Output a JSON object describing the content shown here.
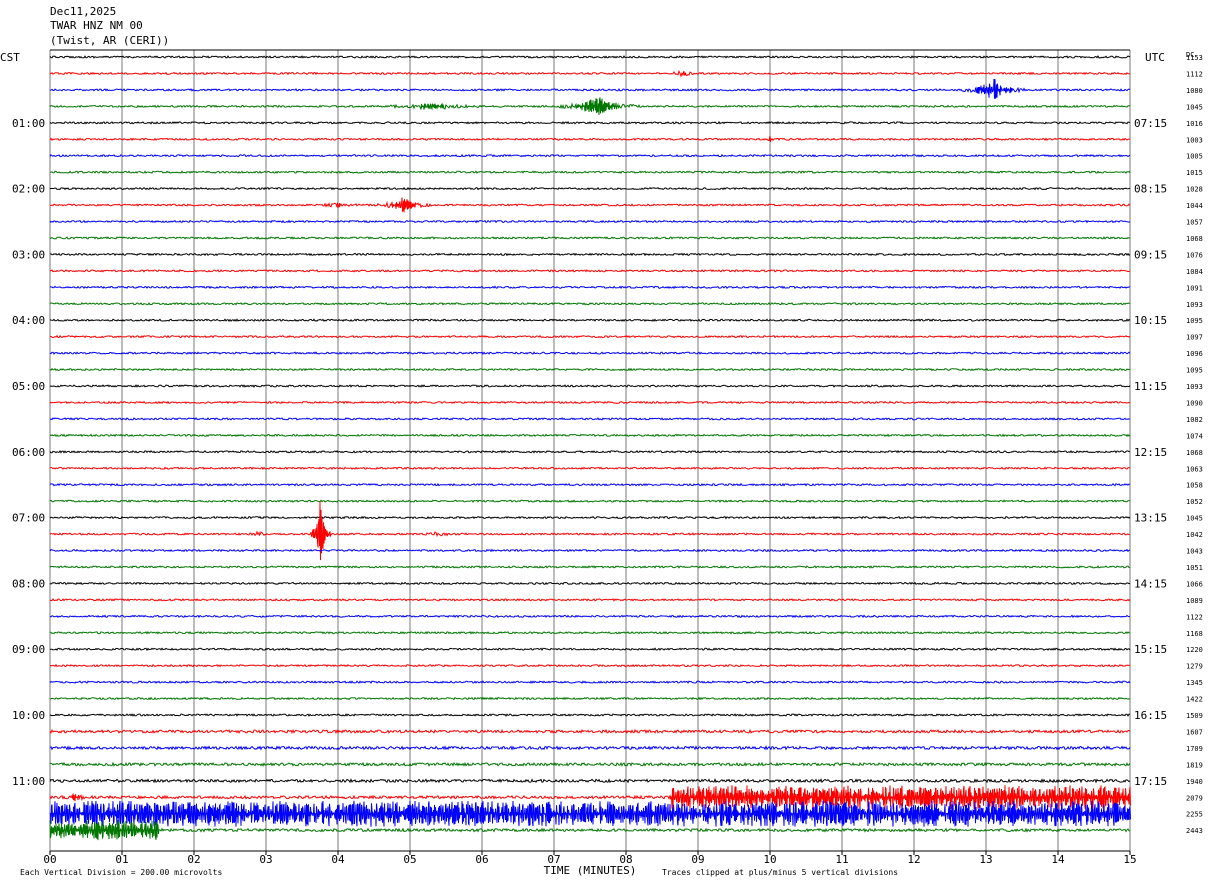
{
  "header": {
    "date": "Dec11,2025",
    "station": "TWAR HNZ NM 00",
    "location": "(Twist, AR (CERI))"
  },
  "chart_data": {
    "type": "line",
    "left_axis_label": "CST",
    "right_axis_label": "UTC",
    "dc_label": "DC",
    "xlabel": "TIME (MINUTES)",
    "xlim": [
      0,
      15
    ],
    "x_ticks": [
      "00",
      "01",
      "02",
      "03",
      "04",
      "05",
      "06",
      "07",
      "08",
      "09",
      "10",
      "11",
      "12",
      "13",
      "14",
      "15"
    ],
    "trace_count": 48,
    "trace_colors": [
      "#000000",
      "#ff0000",
      "#0000ff",
      "#007700"
    ],
    "left_time_labels": [
      {
        "trace": 4,
        "label": "01:00"
      },
      {
        "trace": 8,
        "label": "02:00"
      },
      {
        "trace": 12,
        "label": "03:00"
      },
      {
        "trace": 16,
        "label": "04:00"
      },
      {
        "trace": 20,
        "label": "05:00"
      },
      {
        "trace": 24,
        "label": "06:00"
      },
      {
        "trace": 28,
        "label": "07:00"
      },
      {
        "trace": 32,
        "label": "08:00"
      },
      {
        "trace": 36,
        "label": "09:00"
      },
      {
        "trace": 40,
        "label": "10:00"
      },
      {
        "trace": 44,
        "label": "11:00"
      }
    ],
    "right_time_labels": [
      {
        "trace": 4,
        "label": "07:15"
      },
      {
        "trace": 8,
        "label": "08:15"
      },
      {
        "trace": 12,
        "label": "09:15"
      },
      {
        "trace": 16,
        "label": "10:15"
      },
      {
        "trace": 20,
        "label": "11:15"
      },
      {
        "trace": 24,
        "label": "12:15"
      },
      {
        "trace": 28,
        "label": "13:15"
      },
      {
        "trace": 32,
        "label": "14:15"
      },
      {
        "trace": 36,
        "label": "15:15"
      },
      {
        "trace": 40,
        "label": "16:15"
      },
      {
        "trace": 44,
        "label": "17:15"
      }
    ],
    "dc_offsets": [
      1153,
      1112,
      1080,
      1045,
      1016,
      1003,
      1005,
      1015,
      1028,
      1044,
      1057,
      1068,
      1076,
      1084,
      1091,
      1093,
      1095,
      1097,
      1096,
      1095,
      1093,
      1090,
      1082,
      1074,
      1068,
      1063,
      1058,
      1052,
      1045,
      1042,
      1043,
      1051,
      1066,
      1089,
      1122,
      1168,
      1220,
      1279,
      1345,
      1422,
      1509,
      1607,
      1709,
      1819,
      1940,
      2079,
      2255,
      2443
    ],
    "events": [
      {
        "trace": 1,
        "minute": 8.8,
        "amplitude": 3,
        "width": 0.25
      },
      {
        "trace": 2,
        "minute": 13.1,
        "amplitude": 12,
        "width": 0.45
      },
      {
        "trace": 3,
        "minute": 5.3,
        "amplitude": 4,
        "width": 0.7
      },
      {
        "trace": 3,
        "minute": 7.6,
        "amplitude": 10,
        "width": 0.6
      },
      {
        "trace": 5,
        "minute": 10.0,
        "amplitude": 5,
        "width": 0.06
      },
      {
        "trace": 9,
        "minute": 4.0,
        "amplitude": 3,
        "width": 0.3
      },
      {
        "trace": 9,
        "minute": 4.9,
        "amplitude": 8,
        "width": 0.4
      },
      {
        "trace": 29,
        "minute": 2.9,
        "amplitude": 3,
        "width": 0.15
      },
      {
        "trace": 29,
        "minute": 3.75,
        "amplitude": 34,
        "width": 0.15
      },
      {
        "trace": 29,
        "minute": 5.4,
        "amplitude": 2,
        "width": 0.3
      },
      {
        "trace": 45,
        "minute": 0.35,
        "amplitude": 4,
        "width": 0.2
      }
    ],
    "noise_bursts": [
      {
        "trace": 45,
        "from_minute": 8.6,
        "to_minute": 15,
        "amplitude": 12
      },
      {
        "trace": 46,
        "from_minute": 0,
        "to_minute": 15,
        "amplitude": 13
      },
      {
        "trace": 47,
        "from_minute": 0,
        "to_minute": 1.5,
        "amplitude": 10
      }
    ],
    "footer_left": "Each Vertical Division =  200.00 microvolts",
    "footer_right": "Traces clipped at plus/minus 5 vertical divisions"
  }
}
